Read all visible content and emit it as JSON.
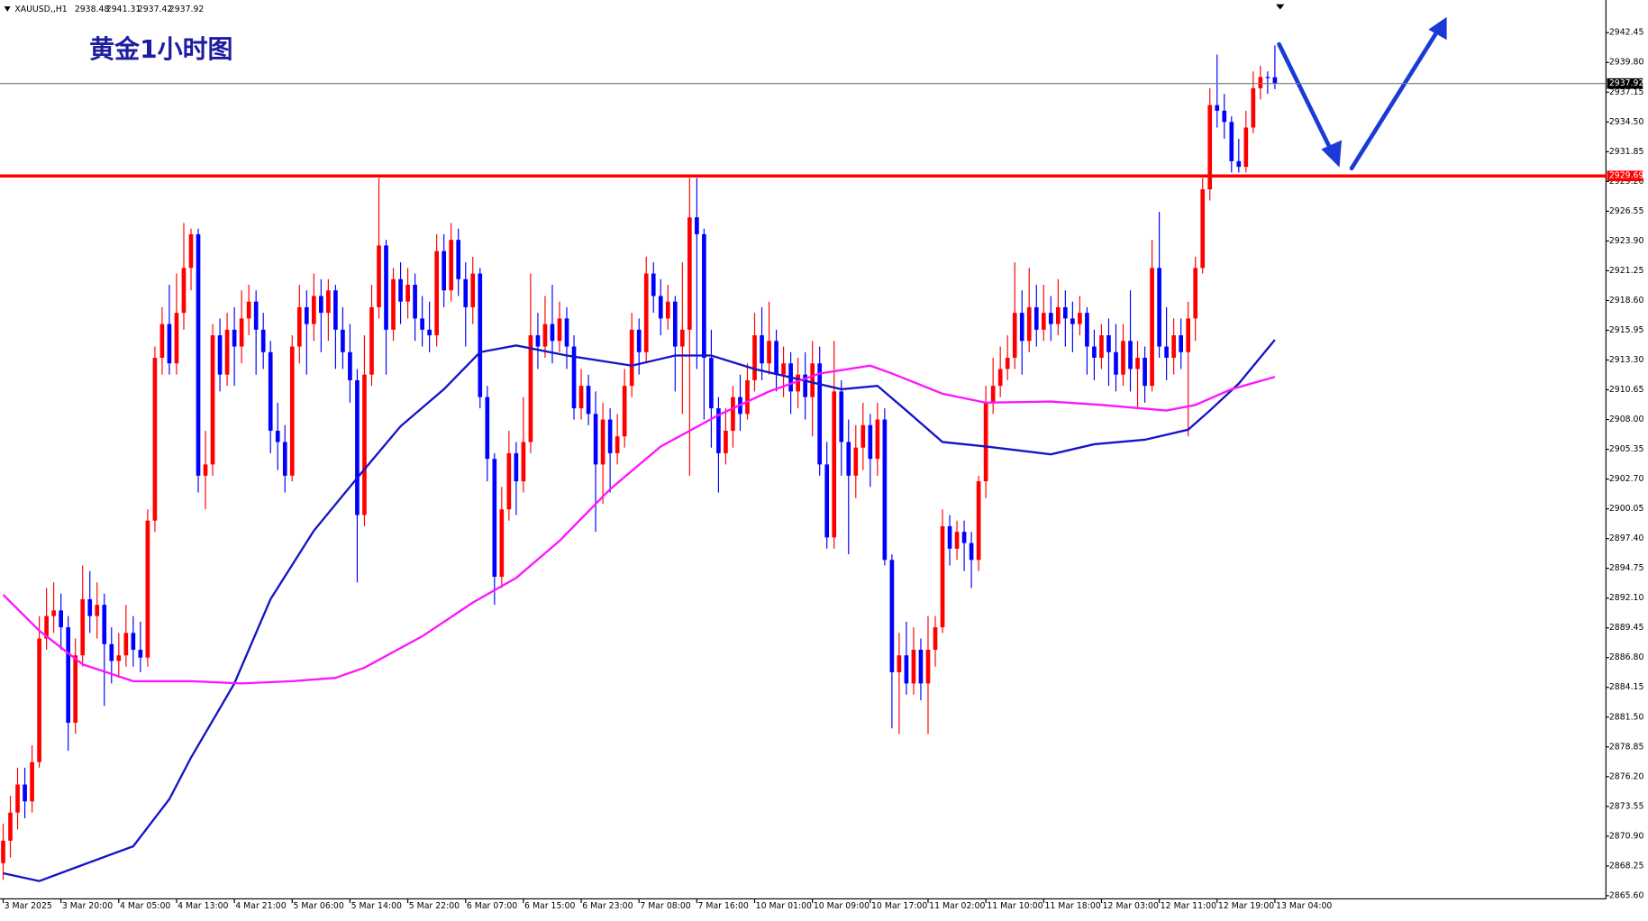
{
  "chart_data": {
    "type": "candlestick",
    "symbol": "XAUUSD,,H1",
    "title": "黄金1小时图",
    "up_color": "#ff0000",
    "down_color": "#0000ff",
    "level": 2929.69,
    "level_color": "#ff0000",
    "ylim": [
      2865.32,
      2945.35
    ],
    "yticks": [
      {
        "value": 2865.6,
        "label": "2865.60"
      },
      {
        "value": 2868.25,
        "label": "2868.25"
      },
      {
        "value": 2870.9,
        "label": "2870.90"
      },
      {
        "value": 2873.55,
        "label": "2873.55"
      },
      {
        "value": 2876.2,
        "label": "2876.20"
      },
      {
        "value": 2878.85,
        "label": "2878.85"
      },
      {
        "value": 2881.5,
        "label": "2881.50"
      },
      {
        "value": 2884.15,
        "label": "2884.15"
      },
      {
        "value": 2886.8,
        "label": "2886.80"
      },
      {
        "value": 2889.45,
        "label": "2889.45"
      },
      {
        "value": 2892.1,
        "label": "2892.10"
      },
      {
        "value": 2894.75,
        "label": "2894.75"
      },
      {
        "value": 2897.4,
        "label": "2897.40"
      },
      {
        "value": 2900.05,
        "label": "2900.05"
      },
      {
        "value": 2902.7,
        "label": "2902.70"
      },
      {
        "value": 2905.35,
        "label": "2905.35"
      },
      {
        "value": 2908,
        "label": "2908.00"
      },
      {
        "value": 2910.65,
        "label": "2910.65"
      },
      {
        "value": 2913.3,
        "label": "2913.30"
      },
      {
        "value": 2915.95,
        "label": "2915.95"
      },
      {
        "value": 2918.6,
        "label": "2918.60"
      },
      {
        "value": 2921.25,
        "label": "2921.25"
      },
      {
        "value": 2923.9,
        "label": "2923.90"
      },
      {
        "value": 2926.55,
        "label": "2926.55"
      },
      {
        "value": 2929.2,
        "label": "2929.20"
      },
      {
        "value": 2931.85,
        "label": "2931.85"
      },
      {
        "value": 2934.5,
        "label": "2934.50"
      },
      {
        "value": 2937.15,
        "label": "2937.15"
      },
      {
        "value": 2939.8,
        "label": "2939.80"
      },
      {
        "value": 2942.45,
        "label": "2942.45"
      }
    ],
    "categories": [
      "3 Mar 2025",
      null,
      null,
      null,
      null,
      null,
      null,
      null,
      "3 Mar 20:00",
      null,
      null,
      null,
      null,
      null,
      null,
      null,
      "4 Mar 05:00",
      null,
      null,
      null,
      null,
      null,
      null,
      null,
      "4 Mar 13:00",
      null,
      null,
      null,
      null,
      null,
      null,
      null,
      "4 Mar 21:00",
      null,
      null,
      null,
      null,
      null,
      null,
      null,
      "5 Mar 06:00",
      null,
      null,
      null,
      null,
      null,
      null,
      null,
      "5 Mar 14:00",
      null,
      null,
      null,
      null,
      null,
      null,
      null,
      "5 Mar 22:00",
      null,
      null,
      null,
      null,
      null,
      null,
      null,
      "6 Mar 07:00",
      null,
      null,
      null,
      null,
      null,
      null,
      null,
      "6 Mar 15:00",
      null,
      null,
      null,
      null,
      null,
      null,
      null,
      "6 Mar 23:00",
      null,
      null,
      null,
      null,
      null,
      null,
      null,
      "7 Mar 08:00",
      null,
      null,
      null,
      null,
      null,
      null,
      null,
      "7 Mar 16:00",
      null,
      null,
      null,
      null,
      null,
      null,
      null,
      "10 Mar 01:00",
      null,
      null,
      null,
      null,
      null,
      null,
      null,
      "10 Mar 09:00",
      null,
      null,
      null,
      null,
      null,
      null,
      null,
      "10 Mar 17:00",
      null,
      null,
      null,
      null,
      null,
      null,
      null,
      "11 Mar 02:00",
      null,
      null,
      null,
      null,
      null,
      null,
      null,
      "11 Mar 10:00",
      null,
      null,
      null,
      null,
      null,
      null,
      null,
      "11 Mar 18:00",
      null,
      null,
      null,
      null,
      null,
      null,
      null,
      "12 Mar 03:00",
      null,
      null,
      null,
      null,
      null,
      null,
      null,
      "12 Mar 11:00",
      null,
      null,
      null,
      null,
      null,
      null,
      null,
      "12 Mar 19:00",
      null,
      null,
      null,
      null,
      null,
      null,
      null,
      "13 Mar 04:00"
    ],
    "open": [
      2868.5,
      2870.5,
      2873.0,
      2875.5,
      2874.0,
      2877.5,
      2888.5,
      2890.5,
      2891.0,
      2889.5,
      2881.0,
      2887.0,
      2892.0,
      2890.5,
      2891.5,
      2888.0,
      2886.5,
      2887.0,
      2889.0,
      2887.5,
      2886.8,
      2899.0,
      2913.5,
      2916.5,
      2913.0,
      2917.5,
      2921.5,
      2924.5,
      2903.0,
      2904.0,
      2915.5,
      2912.0,
      2916.0,
      2914.5,
      2917.0,
      2918.5,
      2916.0,
      2914.0,
      2907.0,
      2906.0,
      2903.0,
      2914.5,
      2918.0,
      2916.5,
      2919.0,
      2917.5,
      2919.5,
      2916.0,
      2914.0,
      2911.5,
      2899.5,
      2912.0,
      2918.0,
      2923.5,
      2916.0,
      2920.5,
      2918.5,
      2920.0,
      2917.0,
      2916.0,
      2915.5,
      2923.0,
      2919.5,
      2924.0,
      2920.5,
      2918.0,
      2921.0,
      2910.0,
      2904.5,
      2894.0,
      2900.0,
      2905.0,
      2902.5,
      2906.0,
      2915.5,
      2914.5,
      2916.5,
      2915.0,
      2917.0,
      2914.5,
      2909.0,
      2911.0,
      2908.5,
      2904.0,
      2908.0,
      2905.0,
      2906.5,
      2911.0,
      2916.0,
      2914.0,
      2921.0,
      2919.0,
      2917.0,
      2918.5,
      2914.5,
      2916.0,
      2926.0,
      2924.5,
      2913.5,
      2909.0,
      2905.0,
      2907.0,
      2910.0,
      2908.5,
      2911.5,
      2915.5,
      2913.0,
      2915.0,
      2912.0,
      2913.0,
      2910.5,
      2912.0,
      2910.0,
      2913.0,
      2904.0,
      2897.5,
      2910.5,
      2906.0,
      2903.0,
      2905.5,
      2907.5,
      2904.5,
      2908.0,
      2895.5,
      2885.5,
      2887.0,
      2884.5,
      2887.5,
      2884.5,
      2887.5,
      2889.5,
      2898.5,
      2896.5,
      2898.0,
      2897.0,
      2895.5,
      2902.5,
      2909.5,
      2911.0,
      2912.5,
      2913.5,
      2917.5,
      2915.0,
      2918.0,
      2916.0,
      2917.5,
      2916.5,
      2918.0,
      2917.0,
      2916.5,
      2917.5,
      2914.5,
      2913.5,
      2915.5,
      2914.0,
      2912.0,
      2915.0,
      2912.5,
      2913.5,
      2911.0,
      2921.5,
      2914.5,
      2913.5,
      2915.5,
      2914.0,
      2917.0,
      2921.5,
      2928.5,
      2936.0,
      2935.5,
      2934.5,
      2931.0,
      2930.5,
      2934.0,
      2937.5,
      2938.5,
      2938.48
    ],
    "high": [
      2872.0,
      2874.5,
      2877.0,
      2877.0,
      2879.0,
      2890.5,
      2893.0,
      2893.5,
      2892.5,
      2890.5,
      2888.5,
      2895.0,
      2894.5,
      2893.5,
      2892.5,
      2889.5,
      2889.0,
      2891.5,
      2890.5,
      2890.0,
      2900.0,
      2914.5,
      2918.0,
      2920.0,
      2921.0,
      2925.5,
      2925.0,
      2925.0,
      2907.0,
      2916.5,
      2917.0,
      2917.5,
      2918.0,
      2919.5,
      2920.0,
      2919.5,
      2917.5,
      2915.0,
      2909.5,
      2907.5,
      2915.5,
      2920.0,
      2919.5,
      2921.0,
      2920.5,
      2920.5,
      2920.0,
      2918.0,
      2916.5,
      2912.5,
      2915.5,
      2920.0,
      2929.5,
      2924.0,
      2921.5,
      2922.0,
      2921.5,
      2921.0,
      2919.0,
      2918.5,
      2924.5,
      2924.5,
      2925.5,
      2925.0,
      2922.0,
      2922.5,
      2921.5,
      2911.0,
      2905.0,
      2902.0,
      2907.0,
      2906.0,
      2910.0,
      2921.0,
      2917.5,
      2919.0,
      2920.0,
      2918.5,
      2918.0,
      2915.5,
      2912.5,
      2912.0,
      2910.5,
      2909.5,
      2909.0,
      2908.5,
      2912.5,
      2917.5,
      2917.0,
      2922.5,
      2922.0,
      2920.5,
      2920.0,
      2919.0,
      2922.0,
      2929.5,
      2929.5,
      2925.0,
      2916.0,
      2910.0,
      2909.0,
      2911.0,
      2912.0,
      2913.0,
      2917.5,
      2918.0,
      2918.5,
      2916.0,
      2914.5,
      2914.0,
      2913.5,
      2914.0,
      2915.0,
      2914.5,
      2906.0,
      2915.0,
      2911.5,
      2908.0,
      2907.5,
      2909.5,
      2908.5,
      2909.5,
      2909.0,
      2896.0,
      2889.0,
      2890.0,
      2889.5,
      2888.5,
      2890.5,
      2890.5,
      2900.0,
      2899.5,
      2899.0,
      2899.0,
      2898.0,
      2903.0,
      2911.0,
      2913.5,
      2914.5,
      2915.5,
      2922.0,
      2919.5,
      2921.5,
      2920.0,
      2920.0,
      2919.0,
      2920.5,
      2919.5,
      2918.5,
      2919.0,
      2918.0,
      2916.0,
      2916.5,
      2917.0,
      2916.5,
      2916.5,
      2919.5,
      2915.0,
      2914.5,
      2924.0,
      2926.5,
      2918.0,
      2917.0,
      2917.0,
      2918.5,
      2922.5,
      2929.5,
      2937.5,
      2940.5,
      2937.0,
      2935.0,
      2933.0,
      2935.5,
      2939.0,
      2939.5,
      2939.0,
      2941.31
    ],
    "low": [
      2867.0,
      2869.0,
      2871.5,
      2872.5,
      2873.0,
      2877.0,
      2887.5,
      2889.0,
      2887.5,
      2878.5,
      2880.0,
      2886.0,
      2889.0,
      2888.5,
      2882.5,
      2884.5,
      2885.0,
      2886.0,
      2886.0,
      2885.5,
      2886.0,
      2898.0,
      2912.0,
      2912.0,
      2912.0,
      2916.0,
      2919.5,
      2901.5,
      2900.0,
      2903.0,
      2910.5,
      2911.0,
      2911.0,
      2913.0,
      2915.5,
      2912.0,
      2912.5,
      2905.0,
      2903.5,
      2901.5,
      2902.5,
      2913.0,
      2912.0,
      2915.0,
      2914.0,
      2915.0,
      2912.5,
      2912.5,
      2909.5,
      2893.5,
      2898.5,
      2911.0,
      2917.0,
      2912.0,
      2915.0,
      2916.5,
      2917.0,
      2915.0,
      2914.5,
      2914.0,
      2914.5,
      2918.0,
      2918.5,
      2919.0,
      2914.5,
      2916.5,
      2909.0,
      2902.5,
      2891.5,
      2893.0,
      2899.0,
      2899.5,
      2901.5,
      2905.0,
      2912.5,
      2913.5,
      2913.0,
      2914.0,
      2912.5,
      2908.0,
      2908.0,
      2907.5,
      2898.0,
      2900.5,
      2901.5,
      2904.0,
      2905.5,
      2910.0,
      2912.0,
      2913.0,
      2917.5,
      2915.5,
      2916.0,
      2910.5,
      2908.5,
      2903.0,
      2912.5,
      2908.0,
      2905.5,
      2901.5,
      2904.0,
      2905.5,
      2907.0,
      2908.0,
      2910.5,
      2911.5,
      2912.0,
      2910.5,
      2910.0,
      2908.5,
      2909.0,
      2908.0,
      2906.5,
      2903.0,
      2896.5,
      2896.5,
      2903.0,
      2896.0,
      2901.0,
      2903.5,
      2902.0,
      2903.0,
      2895.0,
      2880.5,
      2880.0,
      2883.5,
      2883.5,
      2883.0,
      2880.0,
      2886.0,
      2889.0,
      2895.0,
      2895.5,
      2894.5,
      2893.0,
      2894.5,
      2901.0,
      2908.5,
      2910.0,
      2911.5,
      2912.5,
      2912.0,
      2914.0,
      2914.5,
      2915.0,
      2915.0,
      2915.5,
      2914.5,
      2914.0,
      2915.5,
      2912.0,
      2911.5,
      2912.5,
      2911.0,
      2910.5,
      2911.0,
      2910.5,
      2909.0,
      2909.5,
      2910.5,
      2913.5,
      2911.5,
      2912.0,
      2912.5,
      2906.5,
      2915.0,
      2921.0,
      2927.5,
      2934.0,
      2933.0,
      2930.0,
      2930.0,
      2930.0,
      2933.5,
      2936.5,
      2937.0,
      2937.42
    ],
    "close": [
      2870.5,
      2873.0,
      2875.5,
      2874.0,
      2877.5,
      2888.5,
      2890.5,
      2891.0,
      2889.5,
      2881.0,
      2887.0,
      2892.0,
      2890.5,
      2891.5,
      2888.0,
      2886.5,
      2887.0,
      2889.0,
      2887.5,
      2886.8,
      2899.0,
      2913.5,
      2916.5,
      2913.0,
      2917.5,
      2921.5,
      2924.5,
      2903.0,
      2904.0,
      2915.5,
      2912.0,
      2916.0,
      2914.5,
      2917.0,
      2918.5,
      2916.0,
      2914.0,
      2907.0,
      2906.0,
      2903.0,
      2914.5,
      2918.0,
      2916.5,
      2919.0,
      2917.5,
      2919.5,
      2916.0,
      2914.0,
      2911.5,
      2899.5,
      2912.0,
      2918.0,
      2923.5,
      2916.0,
      2920.5,
      2918.5,
      2920.0,
      2917.0,
      2916.0,
      2915.5,
      2923.0,
      2919.5,
      2924.0,
      2920.5,
      2918.0,
      2921.0,
      2910.0,
      2904.5,
      2894.0,
      2900.0,
      2905.0,
      2902.5,
      2906.0,
      2915.5,
      2914.5,
      2916.5,
      2915.0,
      2917.0,
      2914.5,
      2909.0,
      2911.0,
      2908.5,
      2904.0,
      2908.0,
      2905.0,
      2906.5,
      2911.0,
      2916.0,
      2914.0,
      2921.0,
      2919.0,
      2917.0,
      2918.5,
      2914.5,
      2916.0,
      2926.0,
      2924.5,
      2913.5,
      2909.0,
      2905.0,
      2907.0,
      2910.0,
      2908.5,
      2911.5,
      2915.5,
      2913.0,
      2915.0,
      2912.0,
      2913.0,
      2910.5,
      2912.0,
      2910.0,
      2913.0,
      2904.0,
      2897.5,
      2910.5,
      2906.0,
      2903.0,
      2905.5,
      2907.5,
      2904.5,
      2908.0,
      2895.5,
      2885.5,
      2887.0,
      2884.5,
      2887.5,
      2884.5,
      2887.5,
      2889.5,
      2898.5,
      2896.5,
      2898.0,
      2897.0,
      2895.5,
      2902.5,
      2909.5,
      2911.0,
      2912.5,
      2913.5,
      2917.5,
      2915.0,
      2918.0,
      2916.0,
      2917.5,
      2916.5,
      2918.0,
      2917.0,
      2916.5,
      2917.5,
      2914.5,
      2913.5,
      2915.5,
      2914.0,
      2912.0,
      2915.0,
      2912.5,
      2913.5,
      2911.0,
      2921.5,
      2914.5,
      2913.5,
      2915.5,
      2914.0,
      2917.0,
      2921.5,
      2928.5,
      2936.0,
      2935.5,
      2934.5,
      2931.0,
      2930.5,
      2934.0,
      2937.5,
      2938.5,
      2938.48,
      2937.92
    ],
    "series": [
      {
        "color": "#1414c8",
        "x": [
          0,
          5,
          10,
          18,
          23,
          26,
          32,
          37,
          43,
          49,
          55,
          61,
          66,
          71,
          78,
          87,
          93,
          98,
          104,
          110,
          116,
          121,
          125,
          130,
          136,
          145,
          151,
          158,
          164,
          167,
          171,
          176
        ],
        "values": [
          2867.6,
          2866.9,
          2868.1,
          2870.0,
          2874.2,
          2877.9,
          2884.5,
          2892.0,
          2898.1,
          2902.8,
          2907.4,
          2910.7,
          2914.0,
          2914.6,
          2913.7,
          2912.8,
          2913.7,
          2913.7,
          2912.5,
          2911.6,
          2910.7,
          2911.0,
          2908.8,
          2906.0,
          2905.6,
          2904.9,
          2905.8,
          2906.2,
          2907.1,
          2908.8,
          2911.2,
          2915.1
        ]
      },
      {
        "color": "#ff14ff",
        "x": [
          0,
          5,
          11,
          18,
          26,
          33,
          40,
          46,
          50,
          58,
          65,
          71,
          77,
          84,
          91,
          99,
          106,
          113,
          120,
          123,
          130,
          136,
          145,
          152,
          161,
          165,
          170,
          176
        ],
        "values": [
          2892.4,
          2889.2,
          2886.2,
          2884.7,
          2884.7,
          2884.5,
          2884.7,
          2885.0,
          2885.9,
          2888.7,
          2891.7,
          2893.9,
          2897.2,
          2901.8,
          2905.6,
          2908.4,
          2910.5,
          2912.1,
          2912.8,
          2912.1,
          2910.3,
          2909.5,
          2909.6,
          2909.3,
          2908.8,
          2909.3,
          2910.7,
          2911.8
        ]
      }
    ]
  }
}
